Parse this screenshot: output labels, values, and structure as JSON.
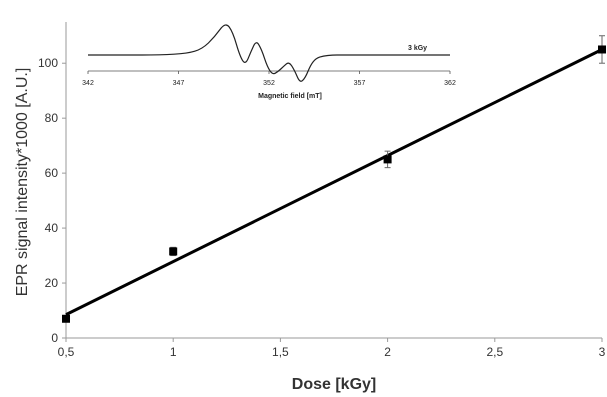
{
  "chart_data": [
    {
      "type": "scatter",
      "xlabel": "Dose  [kGy]",
      "ylabel": "EPR signal intensity*1000  [A.U.]",
      "x_ticks": [
        "0,5",
        "1",
        "1,5",
        "2",
        "2,5",
        "3"
      ],
      "y_ticks": [
        "0",
        "20",
        "40",
        "60",
        "80",
        "100"
      ],
      "xlim": [
        0.5,
        3
      ],
      "ylim": [
        0,
        115
      ],
      "grid": false,
      "series": [
        {
          "points": [
            {
              "x": 0.5,
              "y": 7,
              "err": 0.5
            },
            {
              "x": 1,
              "y": 31.5,
              "err": 1.5
            },
            {
              "x": 2,
              "y": 65,
              "err": 3
            },
            {
              "x": 3,
              "y": 105,
              "err": 5
            }
          ],
          "fit": {
            "x0": 0.5,
            "y0": 8.5,
            "x1": 3,
            "y1": 105
          }
        }
      ],
      "colors": {
        "series": "#000000",
        "axis": "#999999",
        "text": "#333333"
      }
    },
    {
      "type": "line",
      "xlabel": "Magnetic field  [mT]",
      "x_ticks": [
        "342",
        "347",
        "352",
        "357",
        "362"
      ],
      "xlim": [
        342,
        362
      ],
      "annotation": "3 kGy",
      "series": [
        {
          "x": [
            342,
            344,
            346,
            347.5,
            348.3,
            349.0,
            349.6,
            350.0,
            350.4,
            350.7,
            351.0,
            351.3,
            351.6,
            351.9,
            352.2,
            352.5,
            352.8,
            353.1,
            353.4,
            353.7,
            354.0,
            354.3,
            354.6,
            355.0,
            355.5,
            356.0,
            357,
            359,
            362
          ],
          "y": [
            0,
            0,
            0,
            0.05,
            0.18,
            0.55,
            1.0,
            0.7,
            -0.05,
            -0.3,
            0.1,
            0.45,
            0.15,
            -0.35,
            -0.6,
            -0.5,
            -0.35,
            -0.2,
            -0.45,
            -0.85,
            -0.7,
            -0.3,
            -0.1,
            -0.03,
            0,
            0,
            0,
            0,
            0
          ]
        }
      ]
    }
  ]
}
